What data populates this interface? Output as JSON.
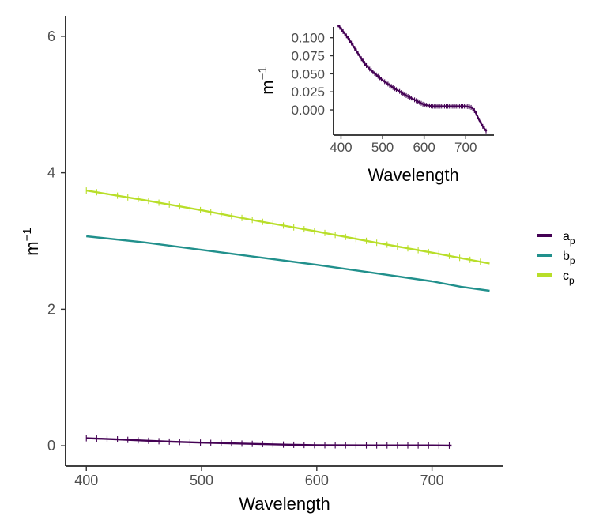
{
  "chart_data": [
    {
      "id": "main",
      "type": "line",
      "xlabel": "Wavelength",
      "ylabel": {
        "base": "m",
        "exponent": "−1"
      },
      "xlim": [
        382,
        762
      ],
      "ylim": [
        -0.3,
        6.3
      ],
      "xticks": [
        400,
        500,
        600,
        700
      ],
      "yticks": [
        0,
        2,
        4,
        6
      ],
      "grid": false,
      "legend_position": "right",
      "series": [
        {
          "key": "ap",
          "name": {
            "base": "a",
            "sub": "p"
          },
          "color": "#440154",
          "error_bars": true,
          "x": [
            400,
            425,
            450,
            475,
            500,
            525,
            550,
            575,
            600,
            625,
            650,
            675,
            700,
            717
          ],
          "y": [
            0.11,
            0.095,
            0.075,
            0.058,
            0.045,
            0.035,
            0.025,
            0.015,
            0.008,
            0.006,
            0.005,
            0.005,
            0.004,
            0.002
          ]
        },
        {
          "key": "bp",
          "name": {
            "base": "b",
            "sub": "p"
          },
          "color": "#21908C",
          "error_bars": false,
          "x": [
            400,
            450,
            500,
            550,
            600,
            650,
            700,
            725,
            750
          ],
          "y": [
            3.07,
            2.98,
            2.87,
            2.76,
            2.65,
            2.53,
            2.41,
            2.33,
            2.27
          ]
        },
        {
          "key": "cp",
          "name": {
            "base": "c",
            "sub": "p"
          },
          "color": "#B8DE29",
          "error_bars": true,
          "x": [
            400,
            450,
            500,
            550,
            600,
            650,
            700,
            750
          ],
          "y": [
            3.74,
            3.6,
            3.45,
            3.29,
            3.14,
            2.98,
            2.83,
            2.67
          ]
        }
      ]
    },
    {
      "id": "inset",
      "type": "line",
      "xlabel": "Wavelength",
      "ylabel": {
        "base": "m",
        "exponent": "−1"
      },
      "xlim": [
        382,
        768
      ],
      "ylim": [
        -0.035,
        0.115
      ],
      "xticks": [
        400,
        500,
        600,
        700
      ],
      "yticks": [
        0.0,
        0.025,
        0.05,
        0.075,
        0.1
      ],
      "xtick_labels": [
        "400",
        "500",
        "600",
        "700"
      ],
      "ytick_labels": [
        "0.000",
        "0.025",
        "0.050",
        "0.075",
        "0.100"
      ],
      "grid": false,
      "series": [
        {
          "key": "ap",
          "name": {
            "base": "a",
            "sub": "p"
          },
          "color": "#440154",
          "error_bars": true,
          "x": [
            393,
            400,
            410,
            420,
            430,
            440,
            450,
            460,
            470,
            480,
            490,
            500,
            510,
            520,
            530,
            540,
            550,
            560,
            570,
            580,
            590,
            600,
            620,
            640,
            660,
            680,
            690,
            700,
            710,
            715,
            720,
            725,
            730,
            735,
            740,
            745,
            750
          ],
          "y": [
            0.118,
            0.112,
            0.105,
            0.097,
            0.088,
            0.079,
            0.07,
            0.062,
            0.056,
            0.051,
            0.046,
            0.041,
            0.037,
            0.033,
            0.029,
            0.026,
            0.022,
            0.019,
            0.016,
            0.013,
            0.01,
            0.007,
            0.005,
            0.005,
            0.005,
            0.005,
            0.005,
            0.005,
            0.004,
            0.003,
            0.0,
            -0.005,
            -0.011,
            -0.017,
            -0.022,
            -0.026,
            -0.03
          ]
        }
      ]
    }
  ]
}
